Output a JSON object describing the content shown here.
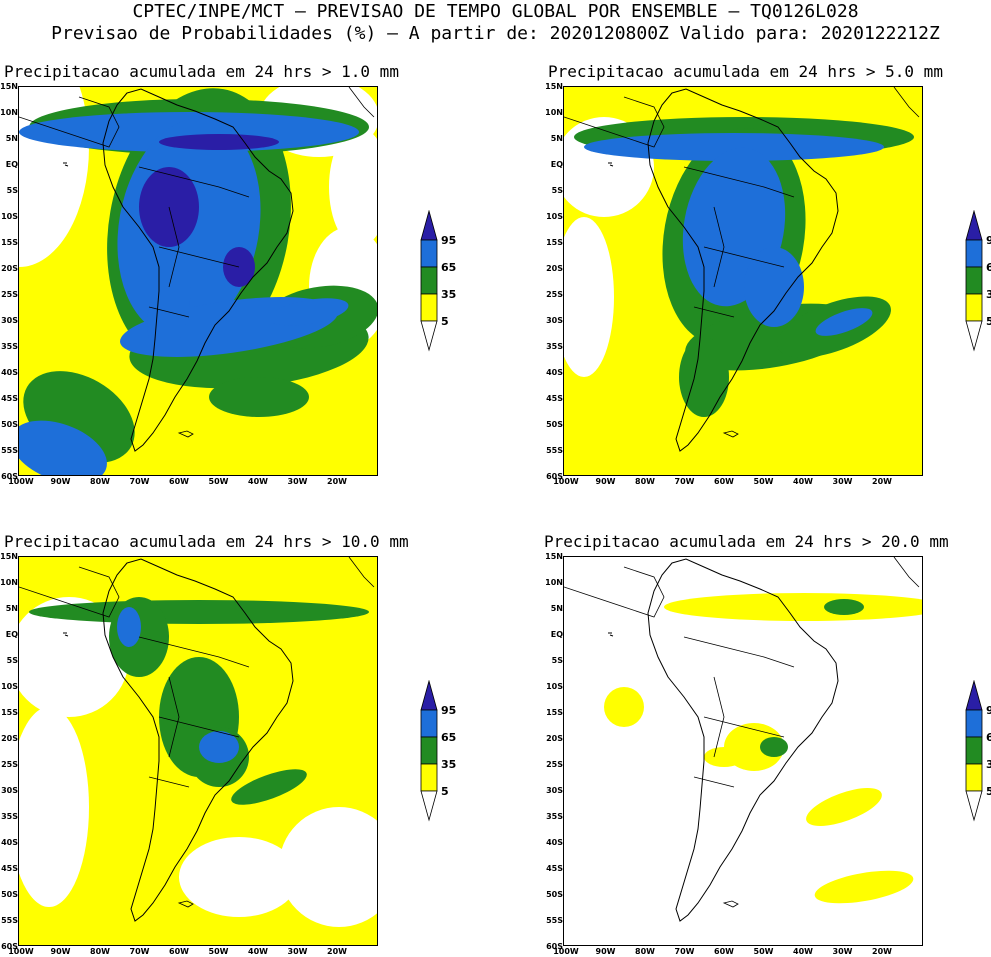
{
  "header": {
    "line1": "CPTEC/INPE/MCT – PREVISAO DE TEMPO GLOBAL POR ENSEMBLE – TQ0126L028",
    "line2": "Previsao de Probabilidades (%) –  A partir de: 2020120800Z  Valido para: 2020122212Z"
  },
  "colors": {
    "white": "#ffffff",
    "yellow": "#ffff00",
    "green": "#228b22",
    "blue": "#1e6fd9",
    "navy": "#2a1ea6"
  },
  "legend": {
    "labels": [
      "95",
      "65",
      "35",
      "5"
    ]
  },
  "axes": {
    "lat_labels": [
      "15N",
      "10N",
      "5N",
      "EQ",
      "5S",
      "10S",
      "15S",
      "20S",
      "25S",
      "30S",
      "35S",
      "40S",
      "45S",
      "50S",
      "55S",
      "60S"
    ],
    "lon_labels": [
      "100W",
      "90W",
      "80W",
      "70W",
      "60W",
      "50W",
      "40W",
      "30W",
      "20W"
    ]
  },
  "panels": [
    {
      "title": "Precipitacao acumulada em 24 hrs > 1.0 mm"
    },
    {
      "title": "Precipitacao acumulada em 24 hrs > 5.0 mm"
    },
    {
      "title": "Precipitacao acumulada em 24 hrs > 10.0 mm"
    },
    {
      "title": "Precipitacao acumulada em 24 hrs > 20.0 mm"
    }
  ]
}
